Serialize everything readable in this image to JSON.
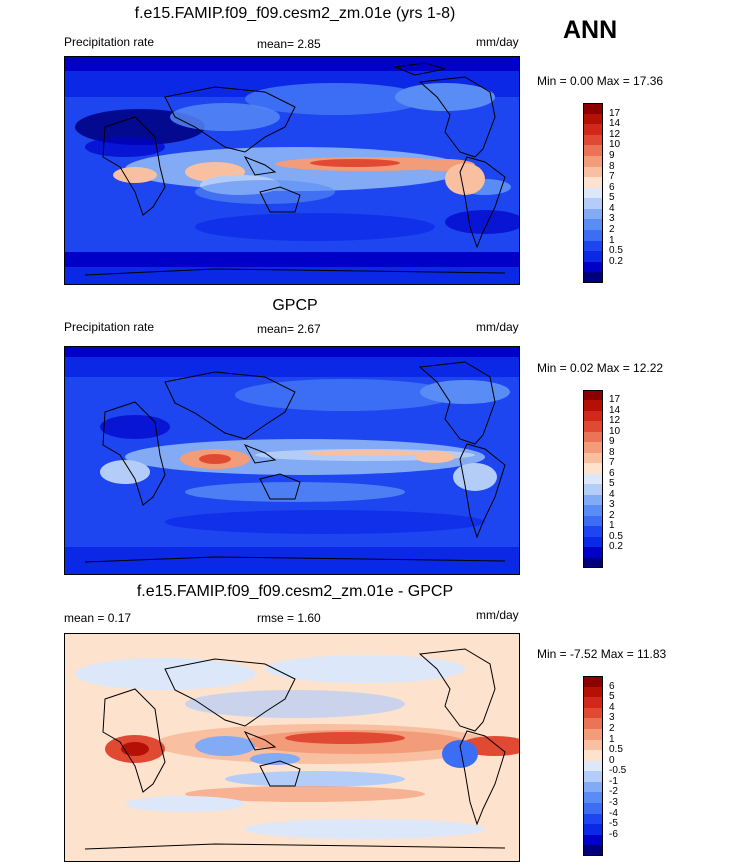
{
  "season": "ANN",
  "colors": {
    "precip": [
      "#00007f",
      "#0000c8",
      "#0a28e6",
      "#1e46f0",
      "#3c6ef5",
      "#5a8cf5",
      "#82aaf5",
      "#b4cdf8",
      "#dce8fa",
      "#fde2cd",
      "#f8c0a0",
      "#f39c7a",
      "#ec7456",
      "#e04a32",
      "#d2281c",
      "#b41006",
      "#8c0000"
    ],
    "diff": [
      "#00007f",
      "#0000c8",
      "#0a28e6",
      "#1e46f0",
      "#3c6ef5",
      "#5a8cf5",
      "#82aaf5",
      "#b4cdf8",
      "#dce8fa",
      "#fde2cd",
      "#f8c0a0",
      "#f39c7a",
      "#ec7456",
      "#e04a32",
      "#d2281c",
      "#b41006",
      "#8c0000"
    ]
  },
  "panels": [
    {
      "title": "f.e15.FAMIP.f09_f09.cesm2_zm.01e (yrs 1-8)",
      "left_text": "Precipitation rate",
      "mean_text": "mean=   2.85",
      "right_text": "mm/day",
      "minmax_text": "Min =   0.00 Max =  17.36",
      "colorbar_ticks": [
        "17",
        "14",
        "12",
        "10",
        "9",
        "8",
        "7",
        "6",
        "5",
        "4",
        "3",
        "2",
        "1",
        "0.5",
        "0.2"
      ]
    },
    {
      "title": "GPCP",
      "left_text": "Precipitation rate",
      "mean_text": "mean=   2.67",
      "right_text": "mm/day",
      "minmax_text": "Min =   0.02 Max =  12.22",
      "colorbar_ticks": [
        "17",
        "14",
        "12",
        "10",
        "9",
        "8",
        "7",
        "6",
        "5",
        "4",
        "3",
        "2",
        "1",
        "0.5",
        "0.2"
      ]
    },
    {
      "title": "f.e15.FAMIP.f09_f09.cesm2_zm.01e - GPCP",
      "left_text": "mean =   0.17",
      "mean_text": "rmse =   1.60",
      "right_text": "mm/day",
      "minmax_text": "Min =  -7.52 Max =  11.83",
      "colorbar_ticks": [
        "6",
        "5",
        "4",
        "3",
        "2",
        "1",
        "0.5",
        "0",
        "-0.5",
        "-1",
        "-2",
        "-3",
        "-4",
        "-5",
        "-6"
      ]
    }
  ],
  "chart_data": [
    {
      "type": "heatmap",
      "title": "f.e15.FAMIP.f09_f09.cesm2_zm.01e (yrs 1-8)",
      "variable": "Precipitation rate",
      "units": "mm/day",
      "mean": 2.85,
      "min": 0.0,
      "max": 17.36,
      "contour_levels": [
        0.2,
        0.5,
        1,
        2,
        3,
        4,
        5,
        6,
        7,
        8,
        9,
        10,
        12,
        14,
        17
      ],
      "map_projection": "cylindrical equidistant, global"
    },
    {
      "type": "heatmap",
      "title": "GPCP",
      "variable": "Precipitation rate",
      "units": "mm/day",
      "mean": 2.67,
      "min": 0.02,
      "max": 12.22,
      "contour_levels": [
        0.2,
        0.5,
        1,
        2,
        3,
        4,
        5,
        6,
        7,
        8,
        9,
        10,
        12,
        14,
        17
      ],
      "map_projection": "cylindrical equidistant, global"
    },
    {
      "type": "heatmap",
      "title": "f.e15.FAMIP.f09_f09.cesm2_zm.01e - GPCP",
      "units": "mm/day",
      "mean": 0.17,
      "rmse": 1.6,
      "min": -7.52,
      "max": 11.83,
      "contour_levels": [
        -6,
        -5,
        -4,
        -3,
        -2,
        -1,
        -0.5,
        0,
        0.5,
        1,
        2,
        3,
        4,
        5,
        6
      ],
      "map_projection": "cylindrical equidistant, global"
    }
  ]
}
